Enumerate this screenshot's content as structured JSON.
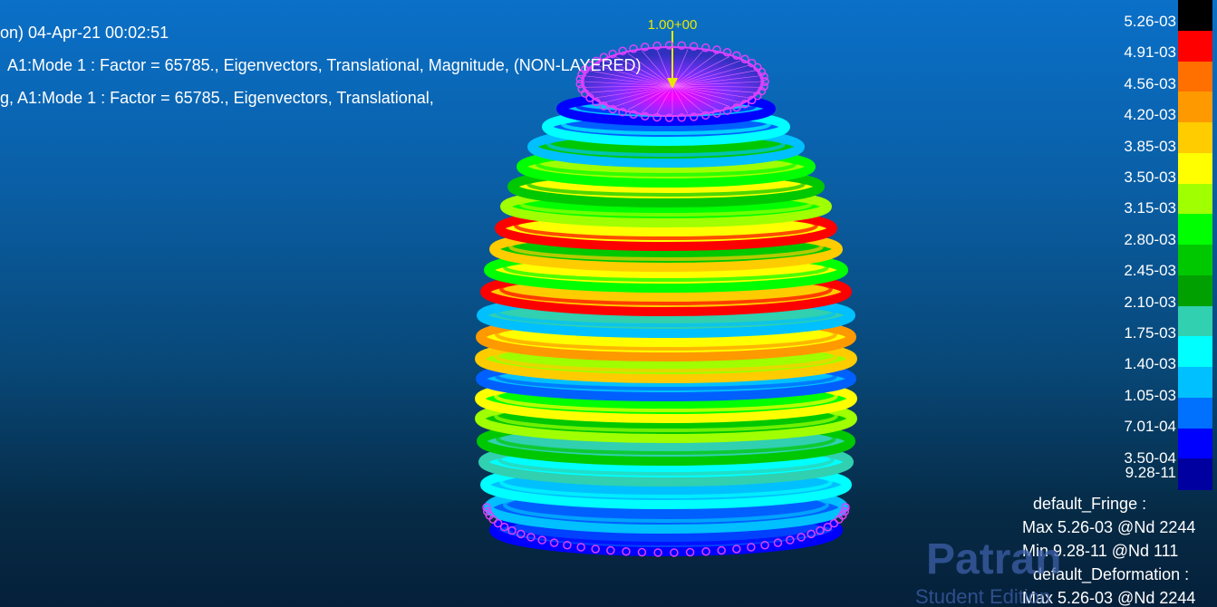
{
  "header": {
    "line1": "on) 04-Apr-21 00:02:51",
    "line2": "A1:Mode 1 : Factor = 65785., Eigenvectors, Translational, Magnitude, (NON-LAYERED)",
    "line3": "g, A1:Mode 1 : Factor = 65785., Eigenvectors, Translational,"
  },
  "model": {
    "top_label": "1.00+00"
  },
  "legend": {
    "labels": [
      "5.26-03",
      "4.91-03",
      "4.56-03",
      "4.20-03",
      "3.85-03",
      "3.50-03",
      "3.15-03",
      "2.80-03",
      "2.45-03",
      "2.10-03",
      "1.75-03",
      "1.40-03",
      "1.05-03",
      "7.01-04",
      "3.50-04",
      "9.28-11"
    ],
    "colors": [
      "#000000",
      "#ff0000",
      "#ff7000",
      "#ff9900",
      "#ffcc00",
      "#ffff00",
      "#a0ff00",
      "#00ff00",
      "#00c800",
      "#00a000",
      "#30d0b0",
      "#00ffff",
      "#00c0ff",
      "#0070ff",
      "#0000ff",
      "#0000a0"
    ]
  },
  "summary": {
    "fringe_title": "default_Fringe :",
    "fringe_max": "Max 5.26-03 @Nd 2244",
    "fringe_min": "Min 9.28-11 @Nd 111",
    "deform_title": "default_Deformation :",
    "deform_max": "Max 5.26-03 @Nd 2244"
  },
  "watermark": {
    "logo": "Patran",
    "sub": "Student Edition"
  }
}
